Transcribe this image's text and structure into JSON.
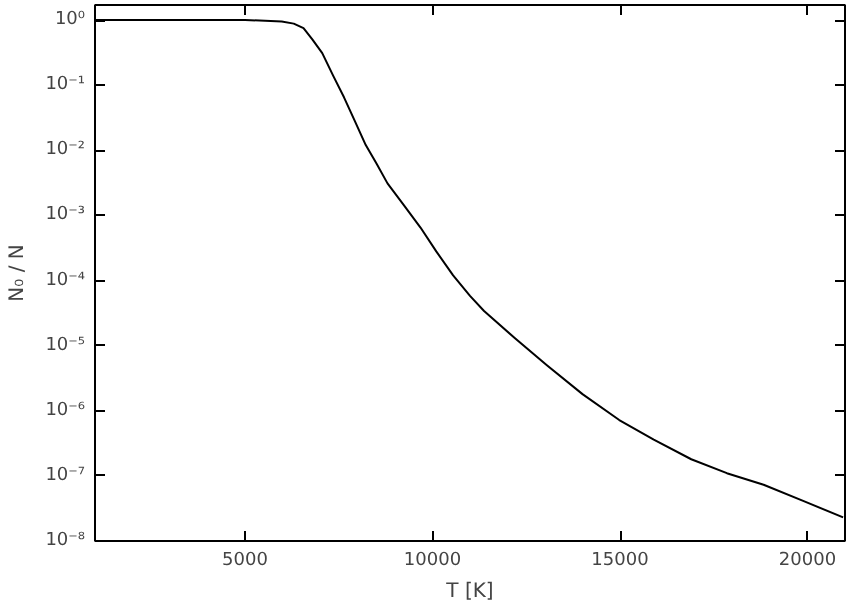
{
  "chart_data": {
    "type": "line",
    "xlabel": "T [K]",
    "ylabel": "N₀ / N",
    "x": [
      1000,
      3000,
      5000,
      5980,
      6300,
      6560,
      6800,
      7060,
      7350,
      7640,
      7930,
      8220,
      8510,
      8800,
      9250,
      9680,
      10100,
      10550,
      11000,
      11375,
      12200,
      13050,
      14000,
      14980,
      15900,
      16900,
      17850,
      18830,
      19900,
      20950
    ],
    "series": [
      {
        "color": "#000000",
        "values": [
          1,
          1,
          1,
          0.95,
          0.88,
          0.75,
          0.5,
          0.31,
          0.14,
          0.065,
          0.028,
          0.012,
          0.0062,
          0.0031,
          0.0014,
          0.00065,
          0.00028,
          0.00012,
          5.8e-05,
          3.4e-05,
          1.3e-05,
          5e-06,
          1.8e-06,
          7.2e-07,
          3.6e-07,
          1.8e-07,
          1.1e-07,
          7.3e-08,
          4.1e-08,
          2.3e-08
        ]
      }
    ],
    "xlim": [
      1000,
      21000
    ],
    "ylim": [
      1e-08,
      1.7
    ],
    "log": "y",
    "xticks": [
      5000,
      10000,
      15000,
      20000
    ],
    "yticks": [
      {
        "value": 1e-08,
        "label": "10⁻⁸"
      },
      {
        "value": 1e-07,
        "label": "10⁻⁷"
      },
      {
        "value": 1e-06,
        "label": "10⁻⁶"
      },
      {
        "value": 1e-05,
        "label": "10⁻⁵"
      },
      {
        "value": 0.0001,
        "label": "10⁻⁴"
      },
      {
        "value": 0.001,
        "label": "10⁻³"
      },
      {
        "value": 0.01,
        "label": "10⁻²"
      },
      {
        "value": 0.1,
        "label": "10⁻¹"
      },
      {
        "value": 1,
        "label": "10⁰"
      }
    ],
    "grid": false,
    "line_style": "solid",
    "marker": "none"
  }
}
